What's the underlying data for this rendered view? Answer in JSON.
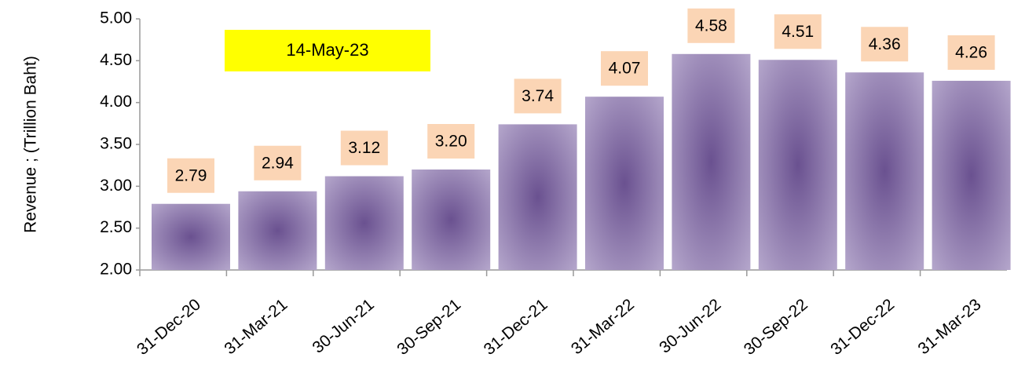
{
  "chart_data": {
    "type": "bar",
    "y_label": "Revenue ;  (Trillion Baht)",
    "annotation": "14-May-23",
    "categories": [
      "31-Dec-20",
      "31-Mar-21",
      "30-Jun-21",
      "30-Sep-21",
      "31-Dec-21",
      "31-Mar-22",
      "30-Jun-22",
      "30-Sep-22",
      "31-Dec-22",
      "31-Mar-23"
    ],
    "values": [
      2.79,
      2.94,
      3.12,
      3.2,
      3.74,
      4.07,
      4.58,
      4.51,
      4.36,
      4.26
    ],
    "value_labels": [
      "2.79",
      "2.94",
      "3.12",
      "3.20",
      "3.74",
      "4.07",
      "4.58",
      "4.51",
      "4.36",
      "4.26"
    ],
    "color": "#7b6699",
    "ylim": [
      2,
      5
    ],
    "yticks": [
      {
        "value": 2,
        "label": "2.00"
      },
      {
        "value": 2.5,
        "label": "2.50"
      },
      {
        "value": 3,
        "label": "3.00"
      },
      {
        "value": 3.5,
        "label": "3.50"
      },
      {
        "value": 4,
        "label": "4.00"
      },
      {
        "value": 4.5,
        "label": "4.50"
      },
      {
        "value": 5,
        "label": "5.00"
      }
    ]
  }
}
